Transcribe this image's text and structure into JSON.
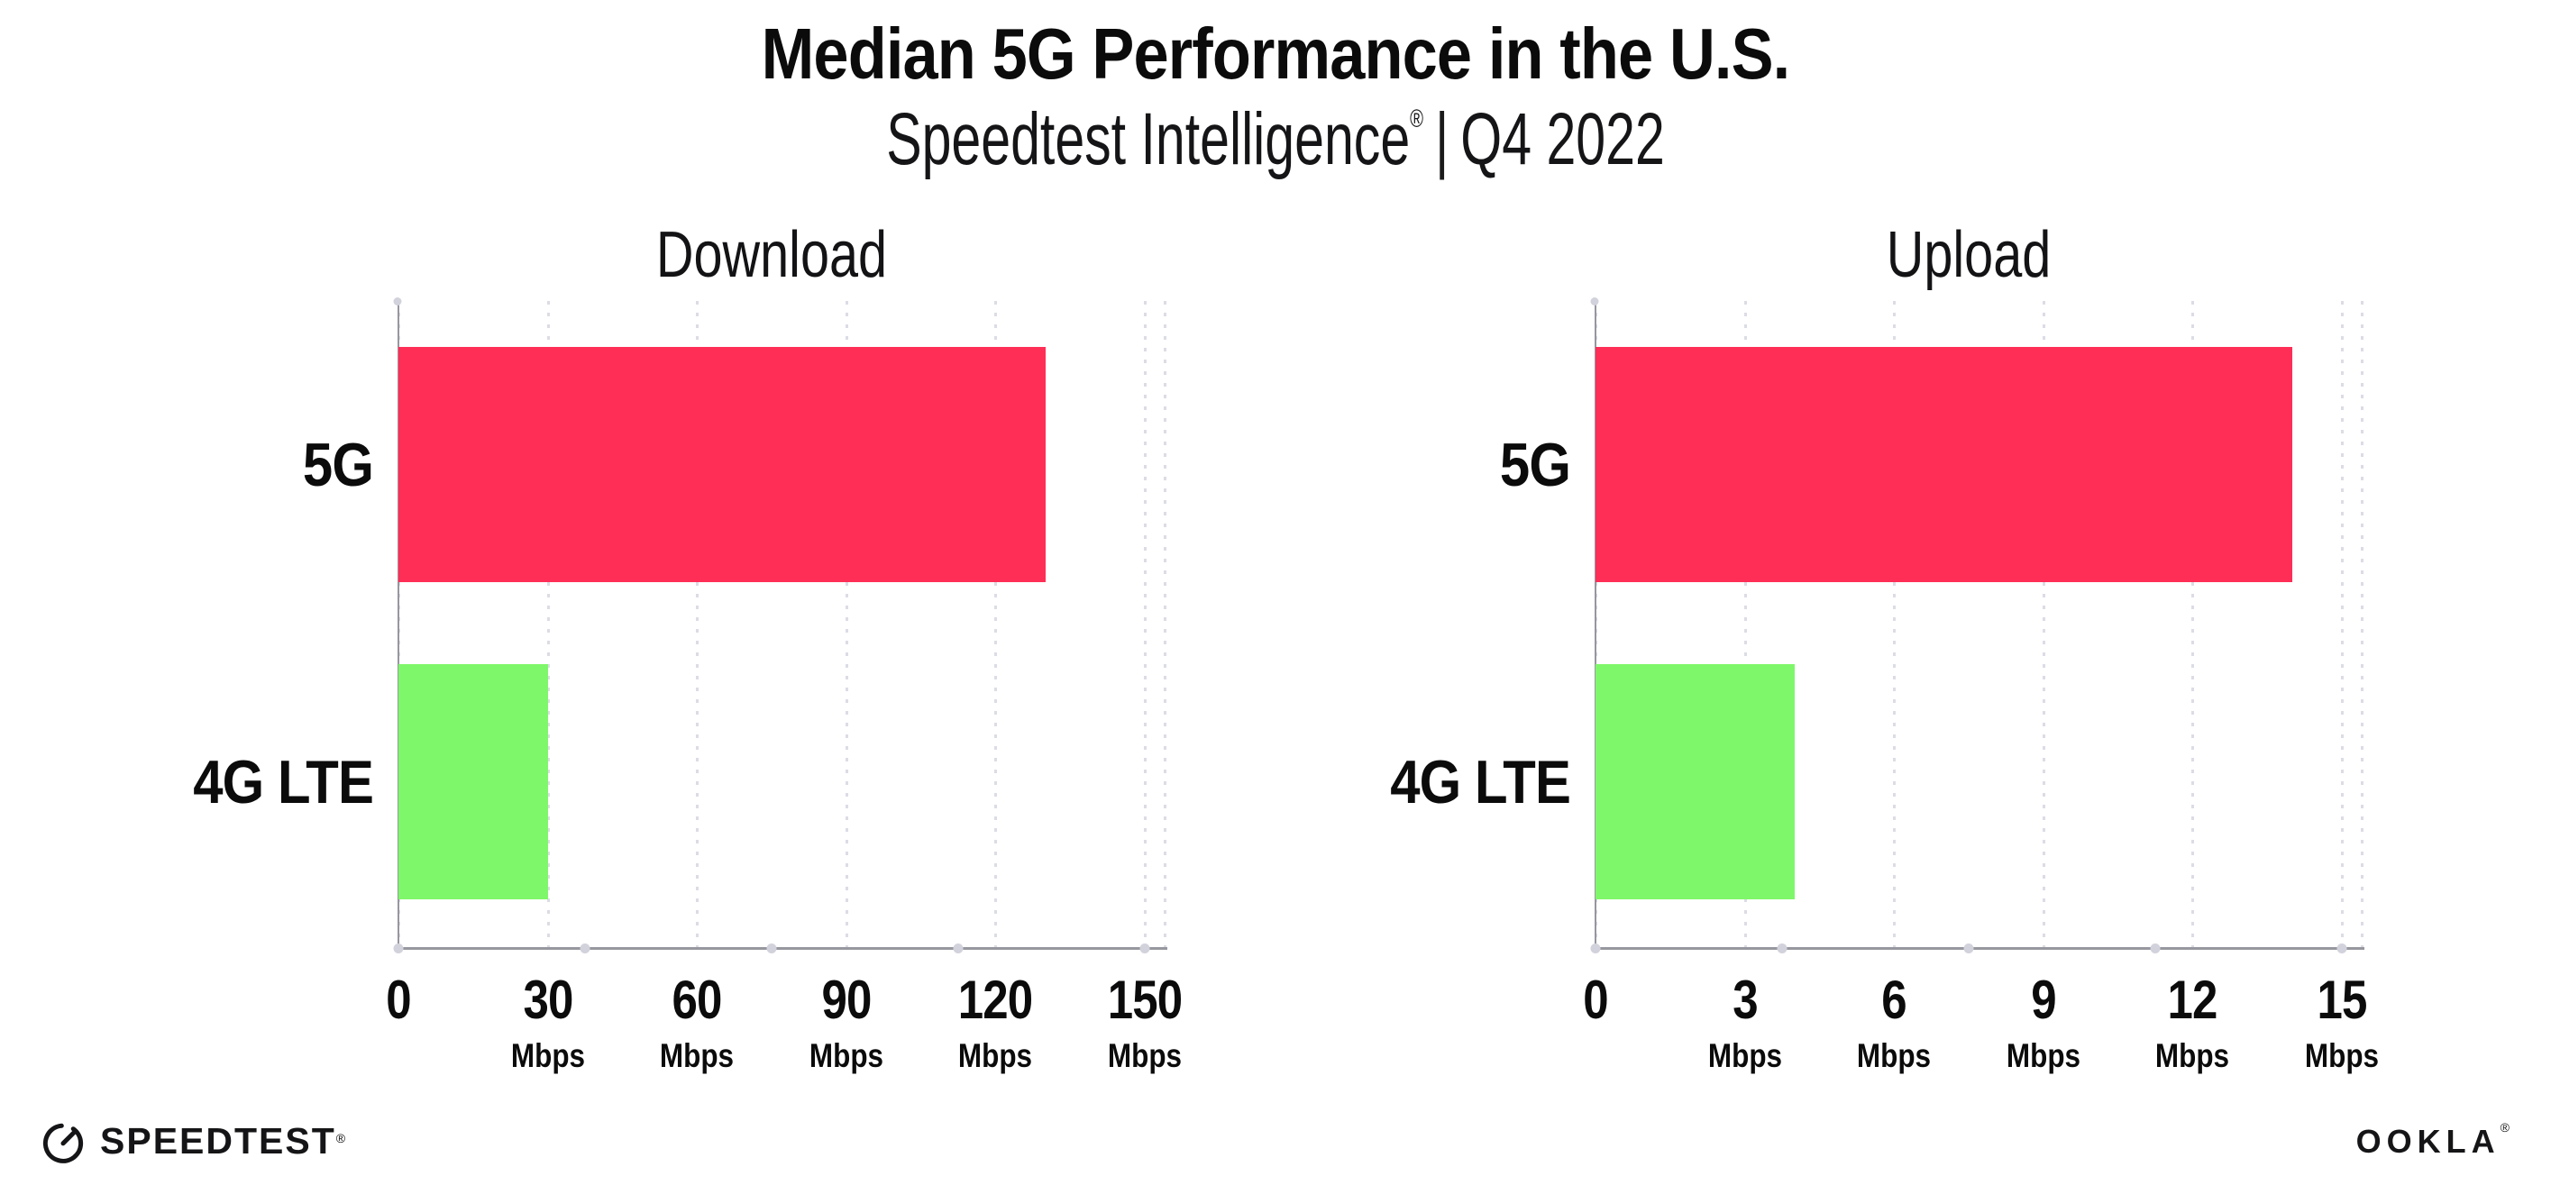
{
  "header": {
    "title": "Median 5G Performance in the U.S.",
    "subtitle_brand": "Speedtest Intelligence",
    "subtitle_reg_mark": "®",
    "subtitle_separator": "|",
    "subtitle_period": "Q4 2022"
  },
  "footer": {
    "speedtest_logo_text": "SPEEDTEST",
    "speedtest_reg_mark": "®",
    "speedtest_icon": "speedtest-gauge-icon",
    "ookla_logo_text": "OOKLA",
    "ookla_reg_mark": "®"
  },
  "colors": {
    "bar_5g": "#ff2e56",
    "bar_4g_lte": "#7ff76a",
    "axis_line": "#97979f",
    "gridline": "#dcdce6",
    "axis_dot": "#d2d2dc",
    "text": "#0b0b0c"
  },
  "chart_data": [
    {
      "type": "bar",
      "orientation": "horizontal",
      "title": "Download",
      "categories": [
        "5G",
        "4G LTE"
      ],
      "values": [
        130,
        30
      ],
      "unit": "Mbps",
      "xlim": [
        0,
        150
      ],
      "xticks": [
        0,
        30,
        60,
        90,
        120,
        150
      ],
      "xtick_unit": "Mbps",
      "grid": "vertical-dotted",
      "legend": "none",
      "bar_colors": [
        "#ff2e56",
        "#7ff76a"
      ]
    },
    {
      "type": "bar",
      "orientation": "horizontal",
      "title": "Upload",
      "categories": [
        "5G",
        "4G LTE"
      ],
      "values": [
        14,
        4
      ],
      "unit": "Mbps",
      "xlim": [
        0,
        15
      ],
      "xticks": [
        0,
        3,
        6,
        9,
        12,
        15
      ],
      "xtick_unit": "Mbps",
      "grid": "vertical-dotted",
      "legend": "none",
      "bar_colors": [
        "#ff2e56",
        "#7ff76a"
      ]
    }
  ]
}
